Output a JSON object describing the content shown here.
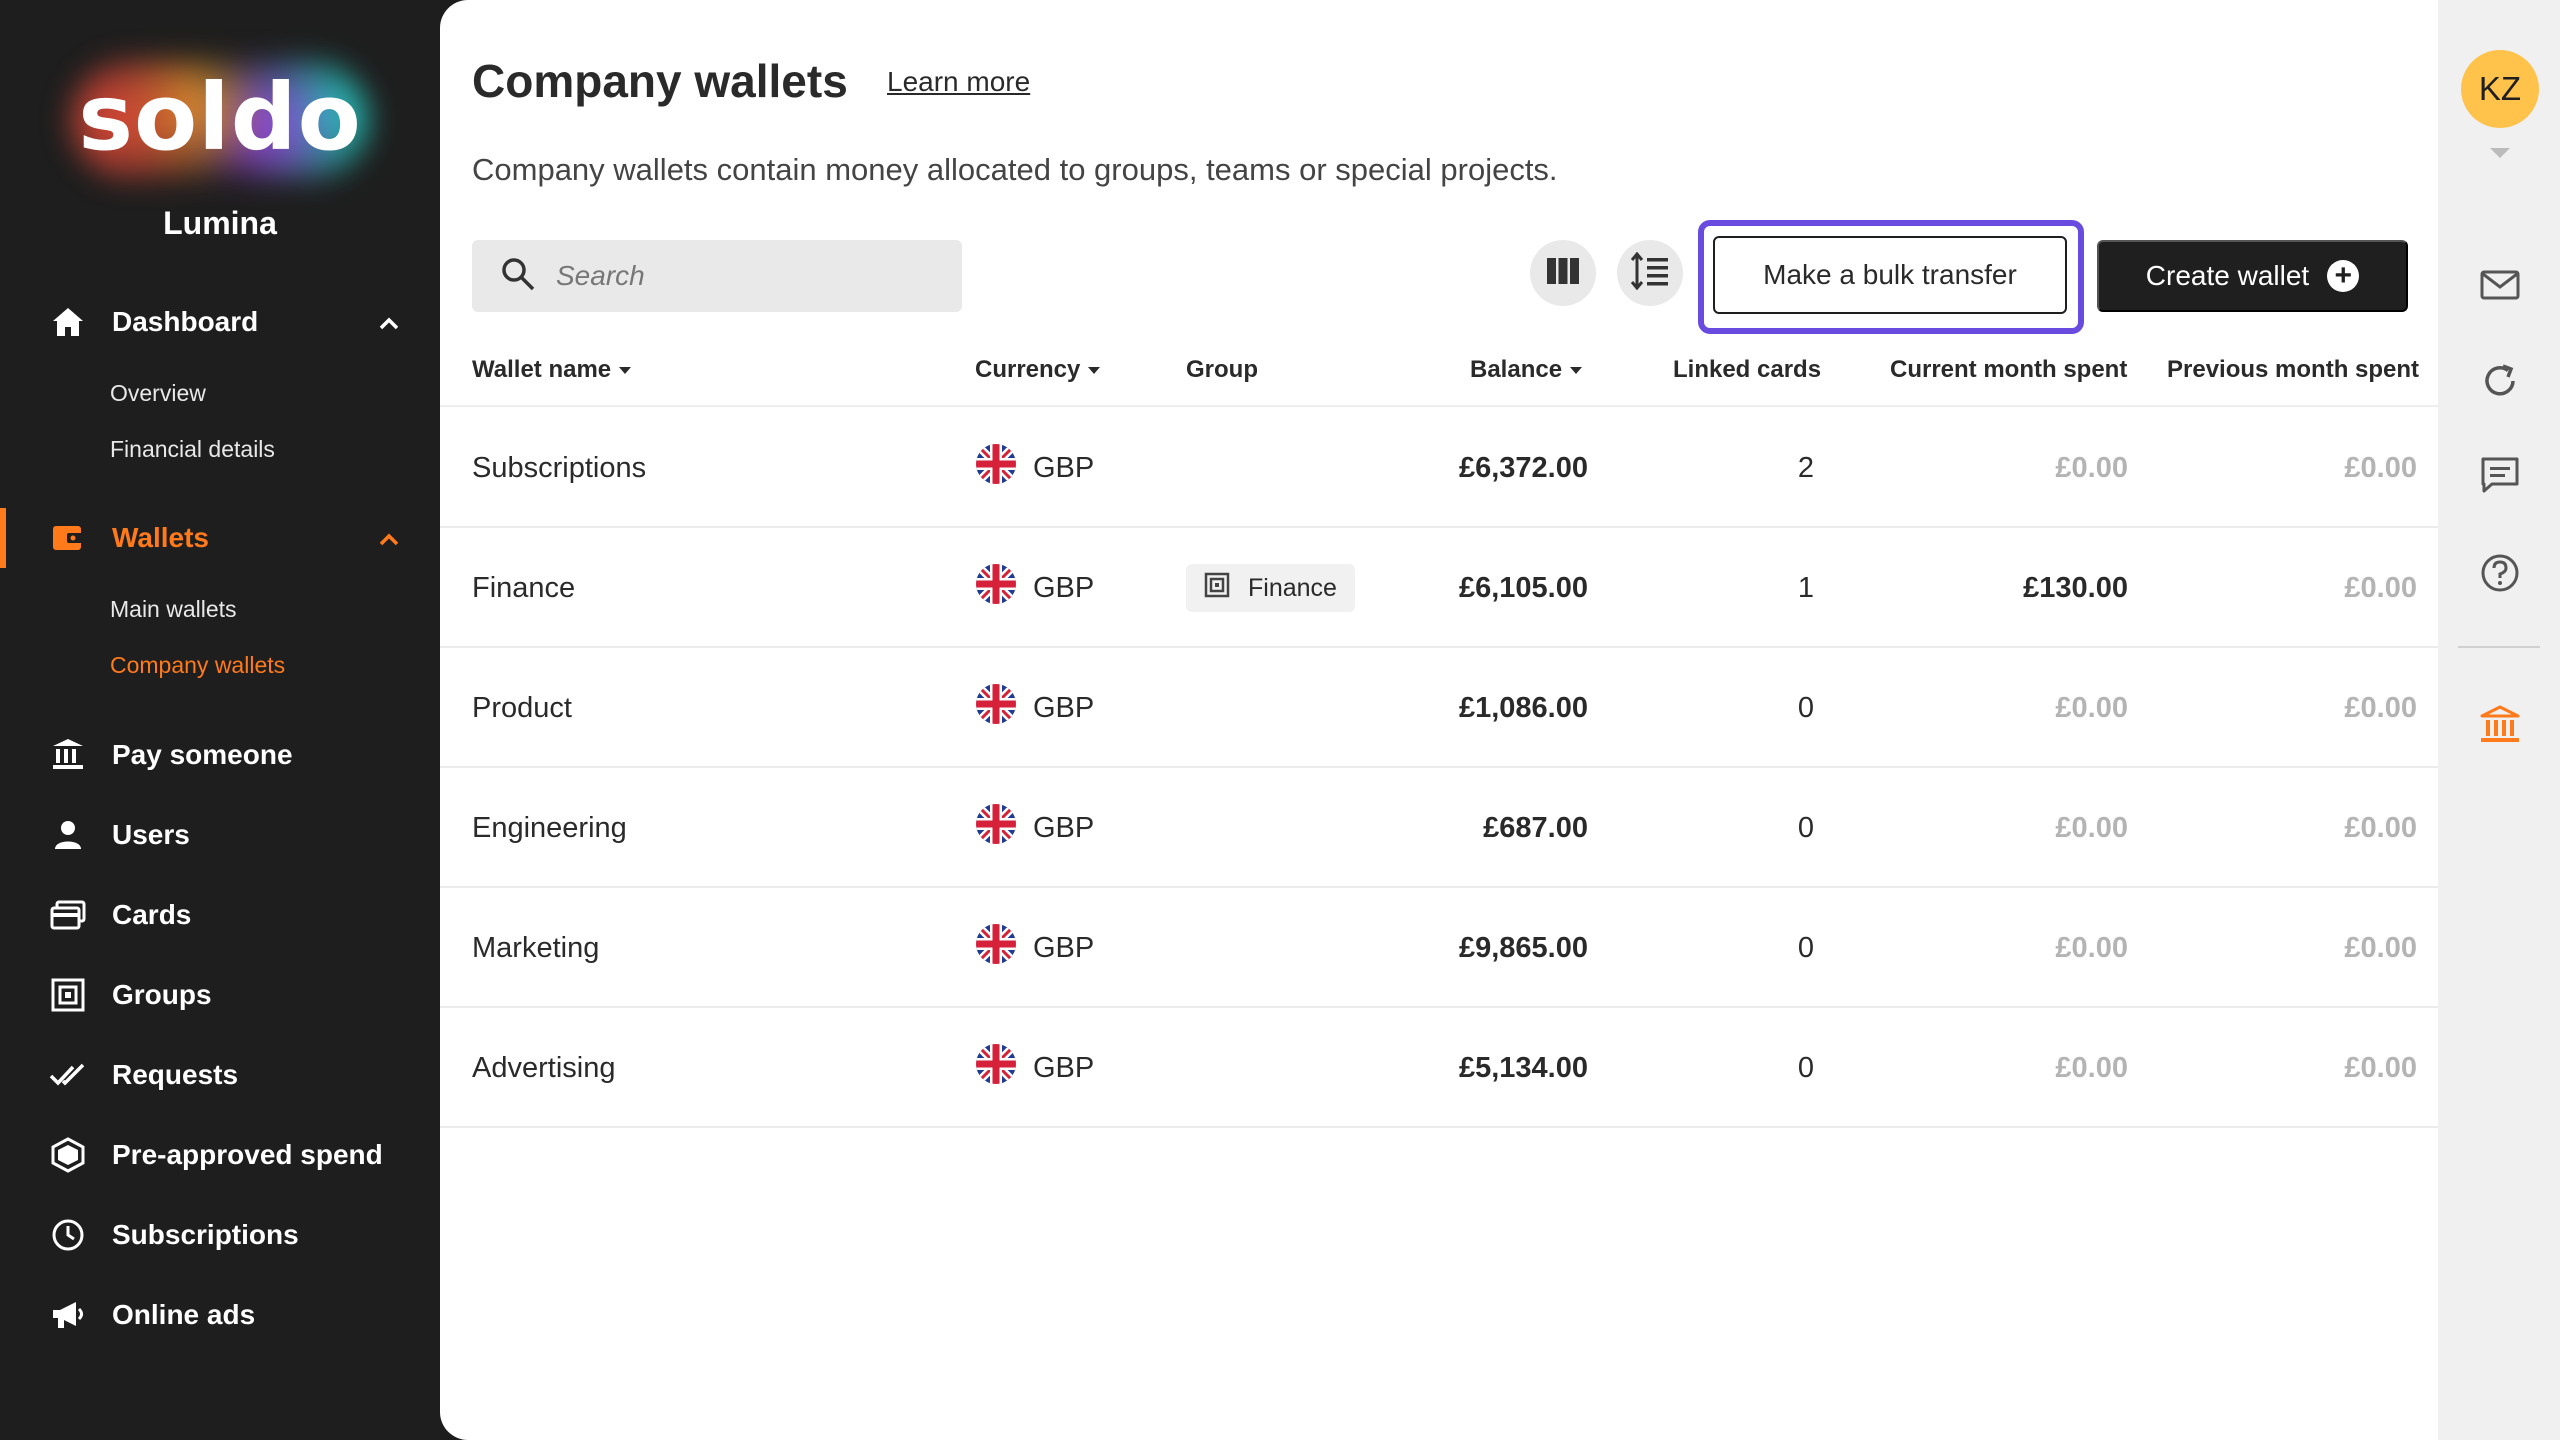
{
  "sidebar": {
    "logo": "soldo",
    "org_name": "Lumina",
    "nav": [
      {
        "label": "Dashboard",
        "icon": "home-icon",
        "expanded": true,
        "active": false
      },
      {
        "label": "Wallets",
        "icon": "wallet-icon",
        "expanded": true,
        "active": true
      },
      {
        "label": "Pay someone",
        "icon": "bank-transfer-icon"
      },
      {
        "label": "Users",
        "icon": "user-icon"
      },
      {
        "label": "Cards",
        "icon": "cards-icon"
      },
      {
        "label": "Groups",
        "icon": "groups-icon"
      },
      {
        "label": "Requests",
        "icon": "double-check-icon"
      },
      {
        "label": "Pre-approved spend",
        "icon": "hexagon-icon"
      },
      {
        "label": "Subscriptions",
        "icon": "clock-icon"
      },
      {
        "label": "Online ads",
        "icon": "megaphone-icon"
      }
    ],
    "dashboard_sub": [
      "Overview",
      "Financial details"
    ],
    "wallets_sub": [
      "Main wallets",
      "Company wallets"
    ],
    "active_sub": "Company wallets"
  },
  "header": {
    "title": "Company wallets",
    "learn_more": "Learn more",
    "subtitle": "Company wallets contain money allocated to groups, teams or special projects."
  },
  "toolbar": {
    "search_placeholder": "Search",
    "columns_icon": "columns-icon",
    "density_icon": "line-spacing-icon",
    "bulk_transfer_label": "Make a bulk transfer",
    "create_wallet_label": "Create wallet"
  },
  "table": {
    "columns": [
      "Wallet name",
      "Currency",
      "Group",
      "Balance",
      "Linked cards",
      "Current month spent",
      "Previous month spent"
    ],
    "rows": [
      {
        "name": "Subscriptions",
        "currency": "GBP",
        "group": "",
        "balance": "£6,372.00",
        "linked_cards": "2",
        "current_spent": "£0.00",
        "previous_spent": "£0.00"
      },
      {
        "name": "Finance",
        "currency": "GBP",
        "group": "Finance",
        "balance": "£6,105.00",
        "linked_cards": "1",
        "current_spent": "£130.00",
        "previous_spent": "£0.00"
      },
      {
        "name": "Product",
        "currency": "GBP",
        "group": "",
        "balance": "£1,086.00",
        "linked_cards": "0",
        "current_spent": "£0.00",
        "previous_spent": "£0.00"
      },
      {
        "name": "Engineering",
        "currency": "GBP",
        "group": "",
        "balance": "£687.00",
        "linked_cards": "0",
        "current_spent": "£0.00",
        "previous_spent": "£0.00"
      },
      {
        "name": "Marketing",
        "currency": "GBP",
        "group": "",
        "balance": "£9,865.00",
        "linked_cards": "0",
        "current_spent": "£0.00",
        "previous_spent": "£0.00"
      },
      {
        "name": "Advertising",
        "currency": "GBP",
        "group": "",
        "balance": "£5,134.00",
        "linked_cards": "0",
        "current_spent": "£0.00",
        "previous_spent": "£0.00"
      }
    ]
  },
  "rail": {
    "avatar_initials": "KZ",
    "icons": [
      "mail-icon",
      "refresh-icon",
      "chat-icon",
      "help-icon",
      "bank-icon"
    ]
  },
  "colors": {
    "accent": "#ff7a1a",
    "highlight": "#6a4be0",
    "sidebar_bg": "#1e1e1e",
    "avatar_bg": "#ffc24a"
  }
}
